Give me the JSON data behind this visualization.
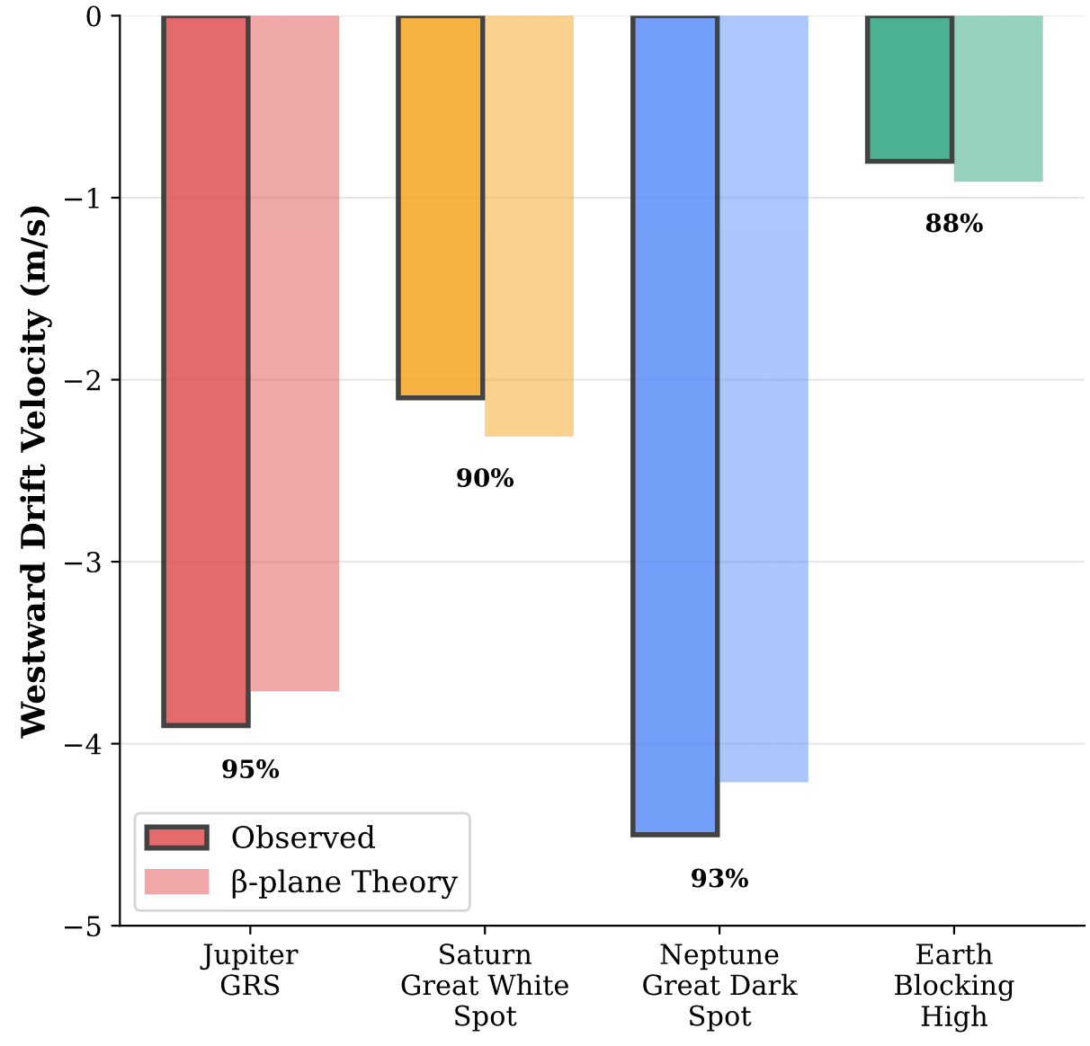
{
  "chart_data": {
    "type": "bar",
    "ylabel": "Westward Drift Velocity (m/s)",
    "categories": [
      "Jupiter\nGRS",
      "Saturn\nGreat White\nSpot",
      "Neptune\nGreat Dark\nSpot",
      "Earth\nBlocking\nHigh"
    ],
    "series": [
      {
        "name": "Observed",
        "colors": [
          "#e05252",
          "#f5a623",
          "#5b8ff9",
          "#2ca47f"
        ],
        "values": [
          -3.9,
          -2.1,
          -4.5,
          -0.8
        ]
      },
      {
        "name": "β-plane Theory",
        "colors": [
          "#e05252",
          "#f5a623",
          "#5b8ff9",
          "#2ca47f"
        ],
        "values": [
          -3.7,
          -2.3,
          -4.2,
          -0.9
        ]
      }
    ],
    "ylim": [
      -5,
      0
    ],
    "yticks": [
      -5,
      -4,
      -3,
      -2,
      -1,
      0
    ],
    "grid": "y",
    "legend": "bottom left",
    "annotations": [
      "95%",
      "90%",
      "93%",
      "88%"
    ]
  }
}
